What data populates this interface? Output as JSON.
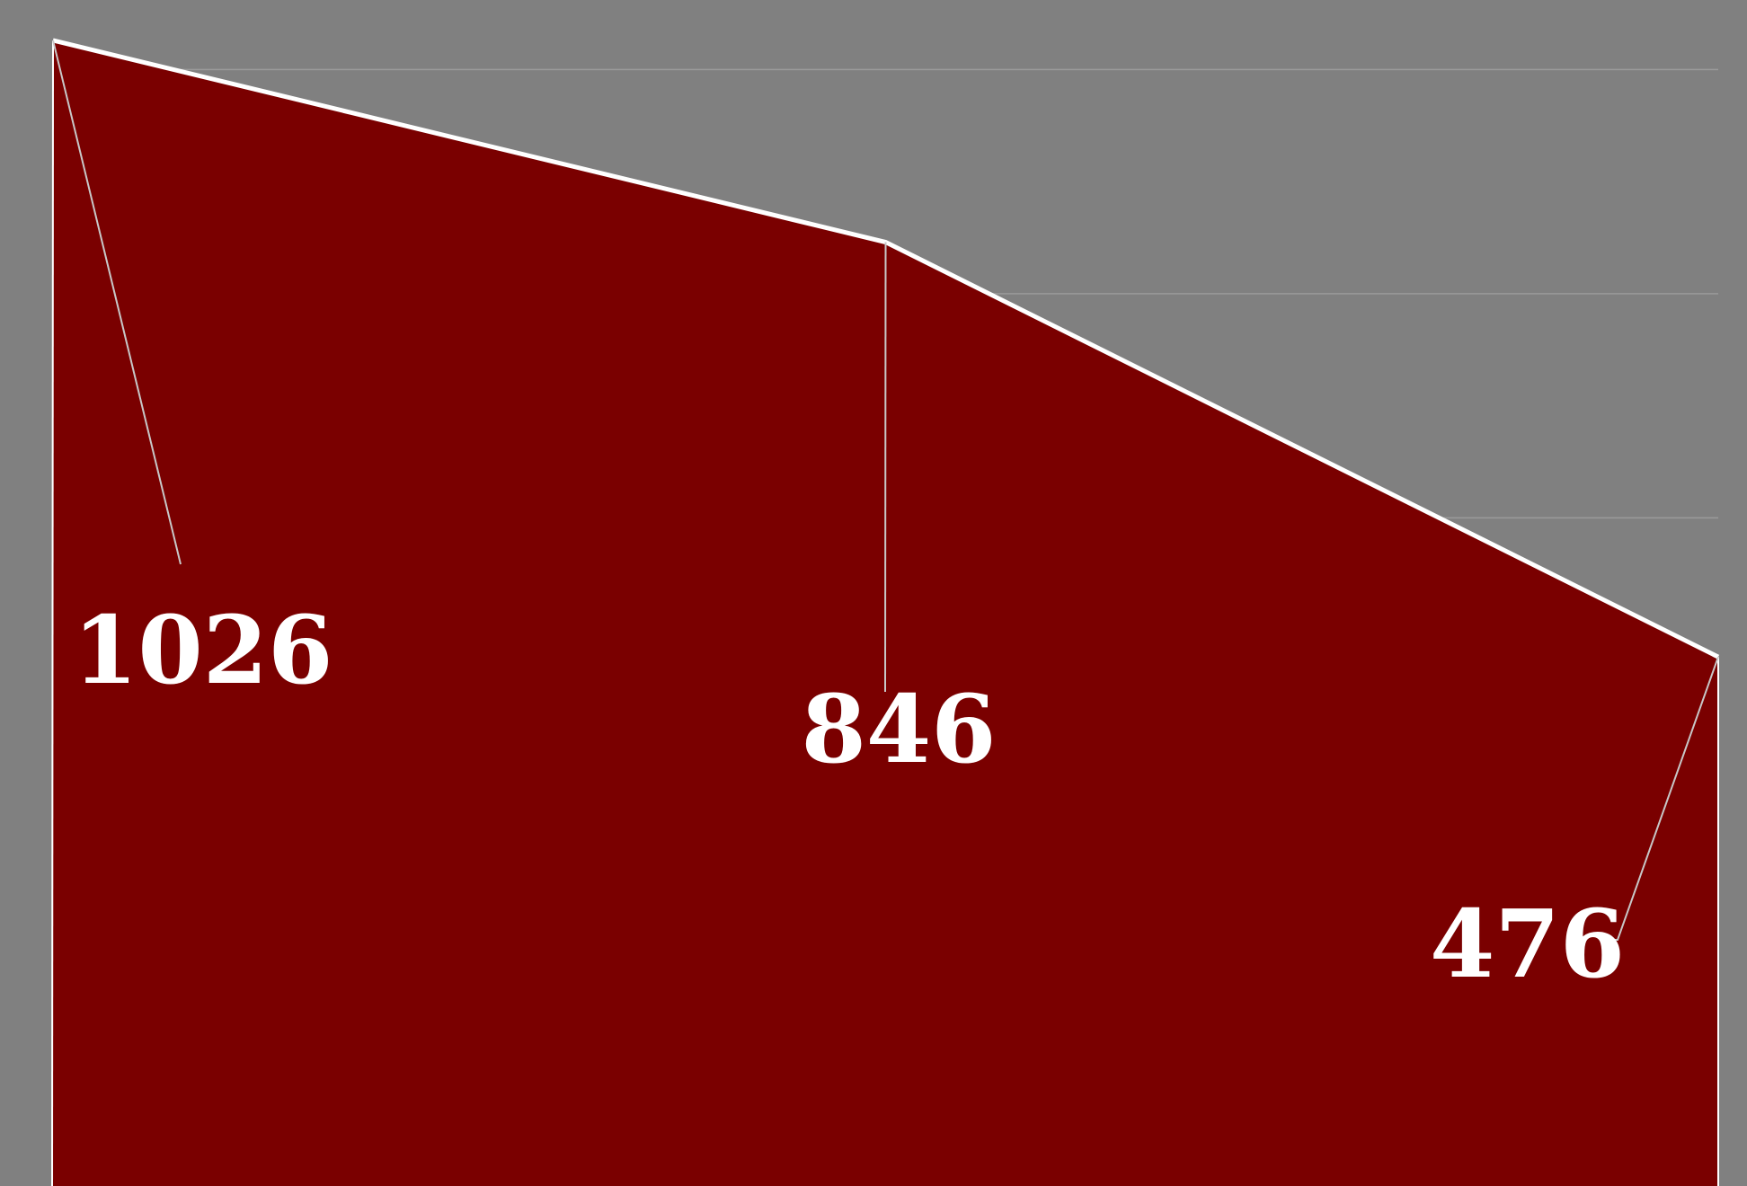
{
  "chart_data": {
    "type": "area",
    "x": [
      1,
      2,
      3
    ],
    "series": [
      {
        "values": [
          1026,
          846,
          476
        ]
      }
    ],
    "data_labels": [
      "1026",
      "846",
      "476"
    ],
    "ylim": [
      0,
      1050
    ],
    "grid": true,
    "legend": "none"
  },
  "colors": {
    "background": "#808080",
    "area_fill": "#7a0000",
    "line": "#ffffff",
    "gridline": "#9a9a9a",
    "label": "#ffffff"
  }
}
